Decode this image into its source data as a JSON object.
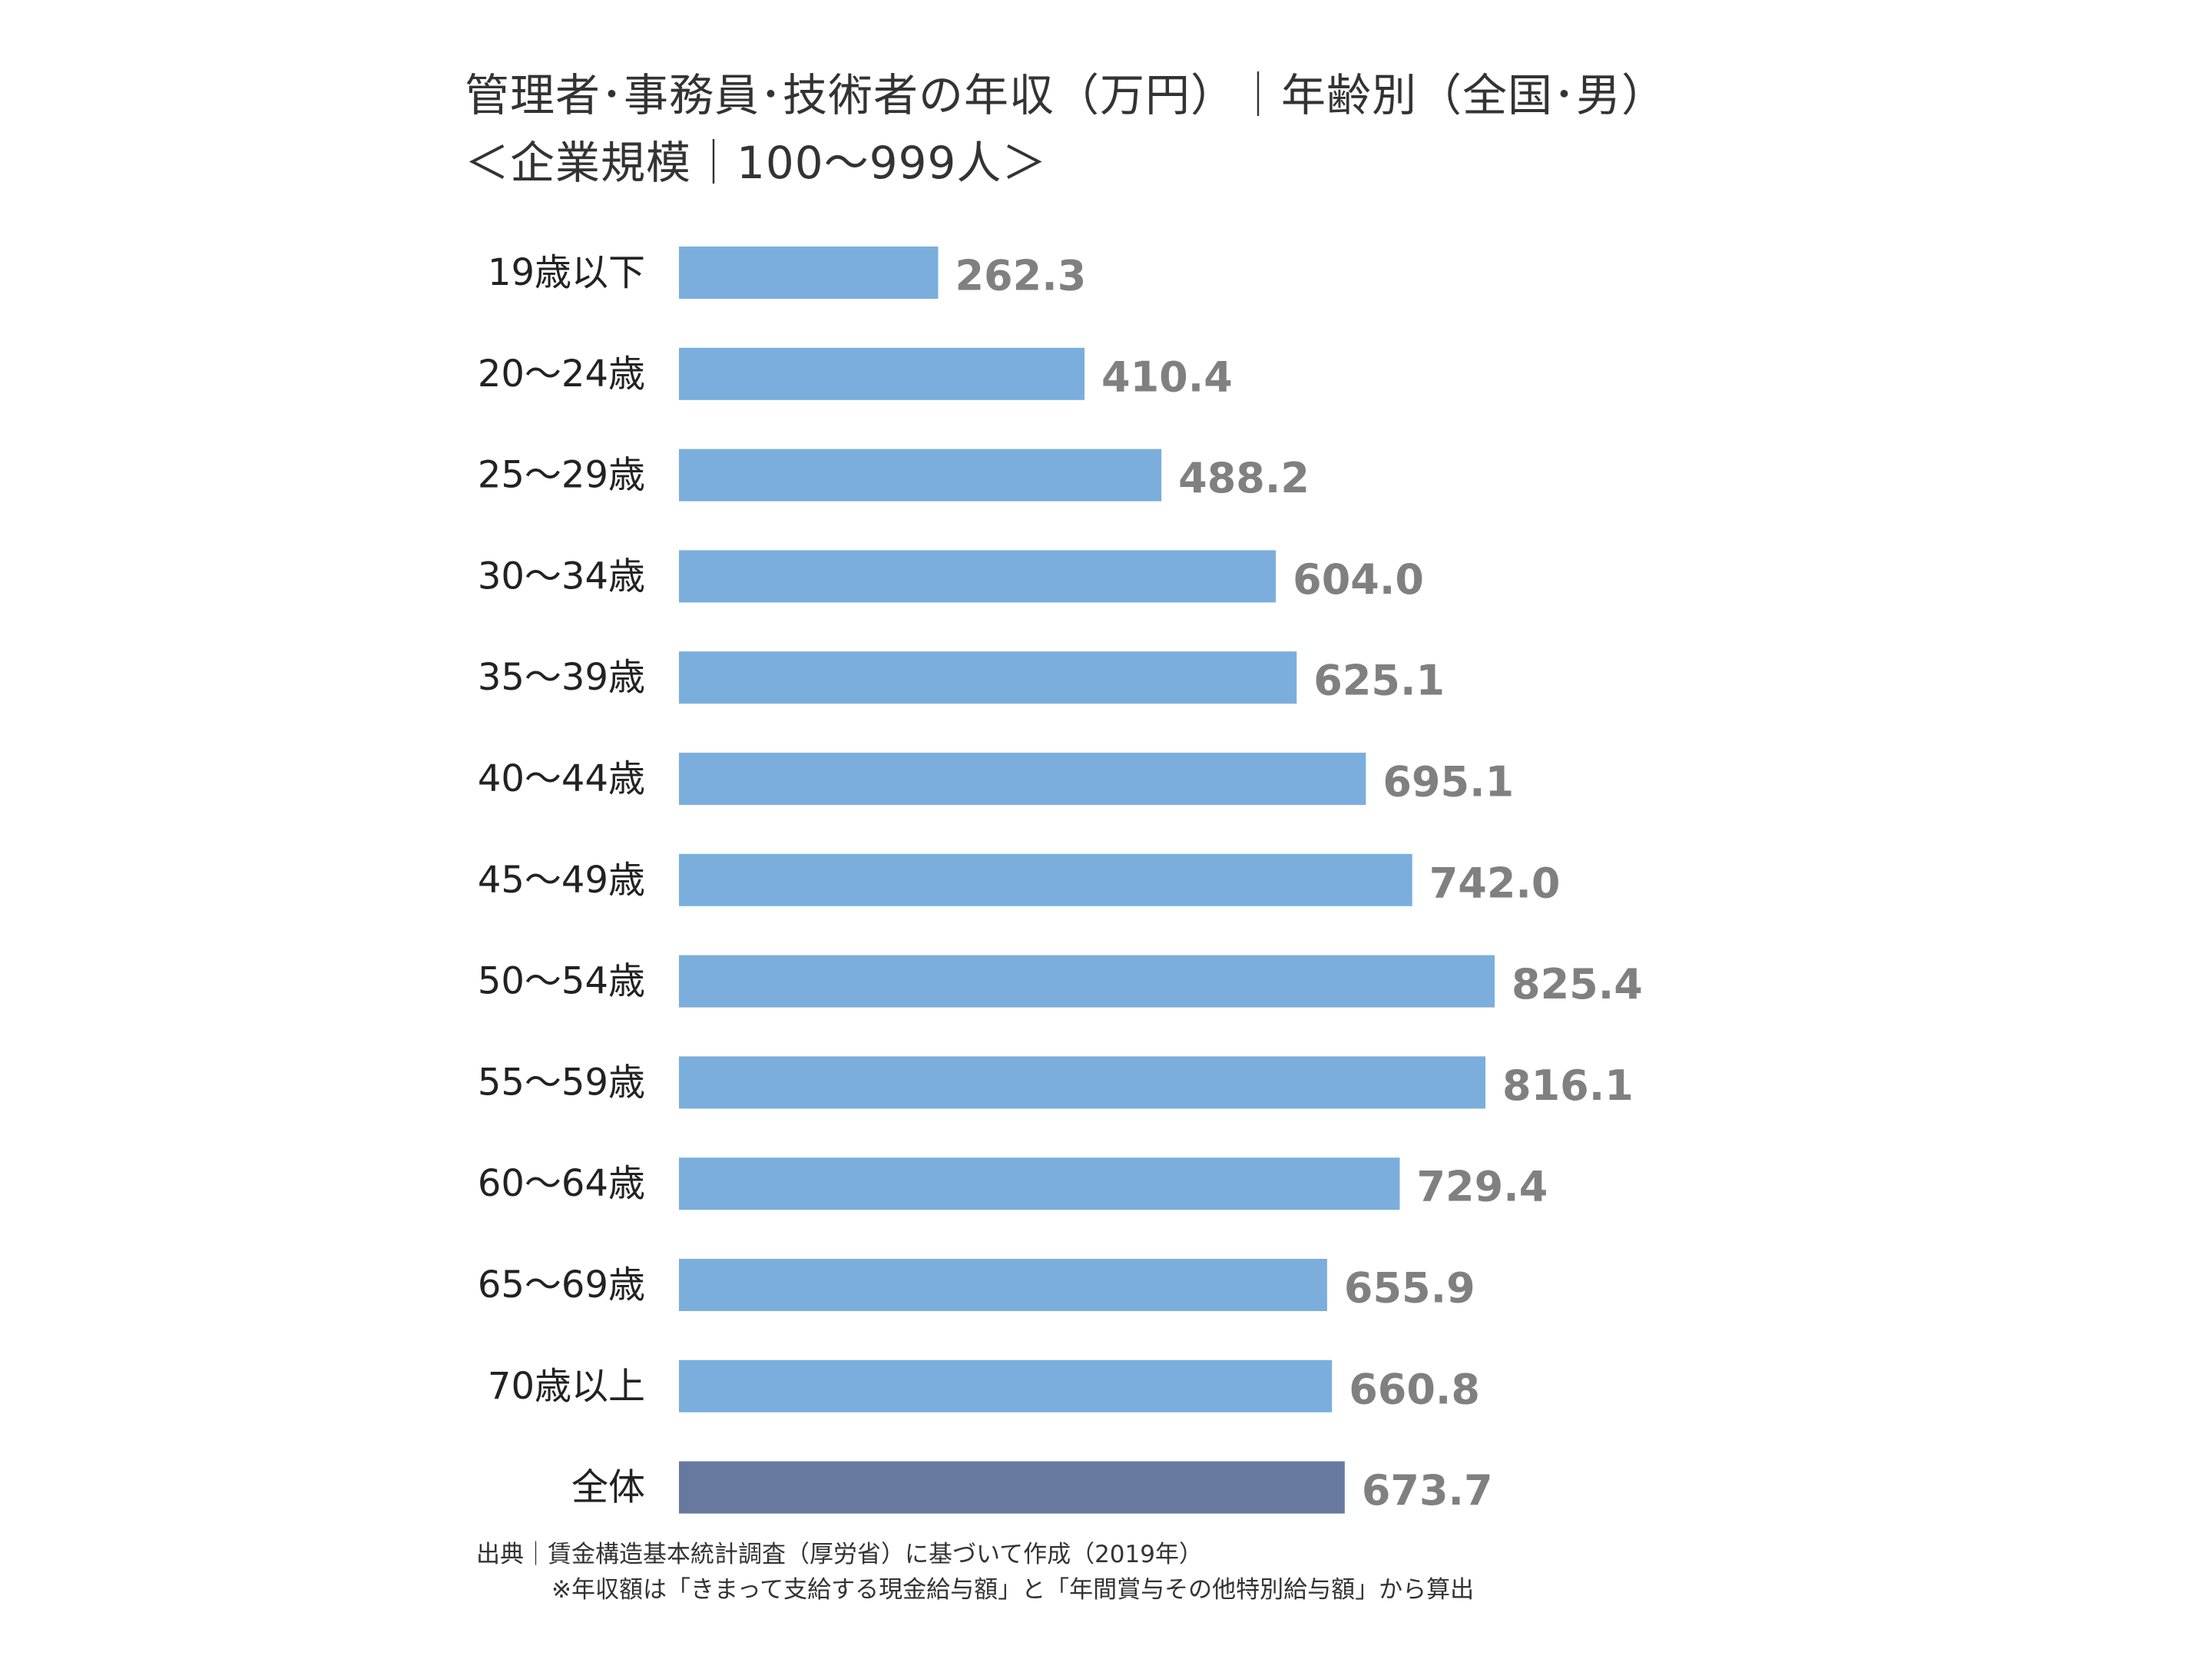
{
  "chart_data": {
    "type": "bar",
    "orientation": "horizontal",
    "title_lines": [
      "管理者･事務員･技術者の年収（万円）｜年齢別（全国･男）",
      "＜企業規模｜100～999人＞"
    ],
    "categories": [
      "19歳以下",
      "20～24歳",
      "25～29歳",
      "30～34歳",
      "35～39歳",
      "40～44歳",
      "45～49歳",
      "50～54歳",
      "55～59歳",
      "60～64歳",
      "65～69歳",
      "70歳以上",
      "全体"
    ],
    "values": [
      262.3,
      410.4,
      488.2,
      604.0,
      625.1,
      695.1,
      742.0,
      825.4,
      816.1,
      729.4,
      655.9,
      660.8,
      673.7
    ],
    "value_labels": [
      "262.3",
      "410.4",
      "488.2",
      "604.0",
      "625.1",
      "695.1",
      "742.0",
      "825.4",
      "816.1",
      "729.4",
      "655.9",
      "660.8",
      "673.7"
    ],
    "colors": {
      "bar": "#7BAEDC",
      "bar_highlight": "#67799F",
      "value_text": "#808080"
    },
    "highlight_category": "全体",
    "xlim": [
      0,
      825.4
    ],
    "xlabel": "",
    "ylabel": "",
    "grid": false,
    "legend": "none"
  },
  "footer": {
    "source": "出典｜賃金構造基本統計調査（厚労省）に基づいて作成（2019年）",
    "note": "※年収額は「きまって支給する現金給与額」と「年間賞与その他特別給与額」から算出"
  }
}
